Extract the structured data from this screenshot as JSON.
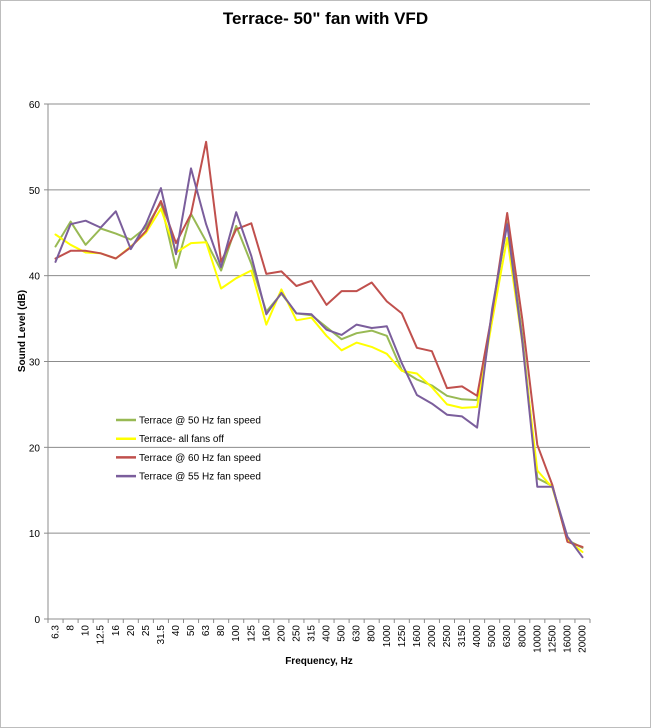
{
  "chart_data": {
    "type": "line",
    "title": "Terrace- 50\" fan with VFD",
    "xlabel": "Frequency, Hz",
    "ylabel": "Sound Level (dB)",
    "ylim": [
      0,
      60
    ],
    "yticks": [
      0,
      10,
      20,
      30,
      40,
      50,
      60
    ],
    "grid": "horizontal major gridlines",
    "legend_position": "lower-left inside plot",
    "categories": [
      "6.3",
      "8",
      "10",
      "12.5",
      "16",
      "20",
      "25",
      "31.5",
      "40",
      "50",
      "63",
      "80",
      "100",
      "125",
      "160",
      "200",
      "250",
      "315",
      "400",
      "500",
      "630",
      "800",
      "1000",
      "1250",
      "1600",
      "2000",
      "2500",
      "3150",
      "4000",
      "5000",
      "6300",
      "8000",
      "10000",
      "12500",
      "16000",
      "20000"
    ],
    "series": [
      {
        "name": "Terrace @ 50 Hz fan speed",
        "color": "#98b954",
        "values": [
          43.4,
          46.3,
          43.6,
          45.5,
          44.9,
          44.2,
          45.6,
          48.5,
          40.9,
          47.2,
          44.0,
          40.6,
          45.8,
          41.4,
          35.8,
          37.9,
          35.6,
          35.4,
          34.0,
          32.6,
          33.3,
          33.6,
          33.0,
          29.0,
          27.9,
          27.2,
          26.0,
          25.6,
          25.5,
          35.5,
          46.2,
          33.0,
          16.4,
          15.5,
          9.2,
          8.3
        ]
      },
      {
        "name": "Terrace- all fans off",
        "color": "#ffff00",
        "values": [
          44.8,
          43.6,
          42.7,
          42.6,
          42.0,
          43.4,
          45.0,
          47.8,
          42.7,
          43.8,
          43.9,
          38.5,
          39.7,
          40.6,
          34.3,
          38.4,
          34.8,
          35.1,
          33.0,
          31.3,
          32.2,
          31.7,
          30.9,
          28.9,
          28.6,
          27.0,
          25.0,
          24.6,
          24.7,
          34.7,
          44.4,
          32.2,
          17.3,
          15.3,
          9.2,
          7.8
        ]
      },
      {
        "name": "Terrace @ 60 Hz fan speed",
        "color": "#c0504d",
        "values": [
          42.0,
          42.9,
          42.9,
          42.6,
          42.0,
          43.3,
          45.2,
          48.7,
          43.8,
          47.2,
          55.6,
          41.6,
          45.4,
          46.1,
          40.2,
          40.5,
          38.8,
          39.4,
          36.6,
          38.2,
          38.2,
          39.2,
          37.0,
          35.6,
          31.6,
          31.2,
          26.9,
          27.1,
          26.0,
          35.6,
          47.3,
          34.9,
          20.3,
          15.6,
          9.0,
          8.4
        ]
      },
      {
        "name": "Terrace @ 55 Hz fan speed",
        "color": "#7b5e9c",
        "values": [
          41.6,
          46.0,
          46.4,
          45.6,
          47.5,
          43.1,
          46.0,
          50.2,
          42.5,
          52.5,
          46.0,
          41.0,
          47.4,
          42.3,
          35.5,
          38.0,
          35.6,
          35.5,
          33.7,
          33.1,
          34.3,
          33.9,
          34.1,
          29.8,
          26.1,
          25.1,
          23.8,
          23.6,
          22.3,
          36.1,
          46.0,
          32.3,
          15.4,
          15.4,
          9.6,
          7.2
        ]
      }
    ]
  }
}
